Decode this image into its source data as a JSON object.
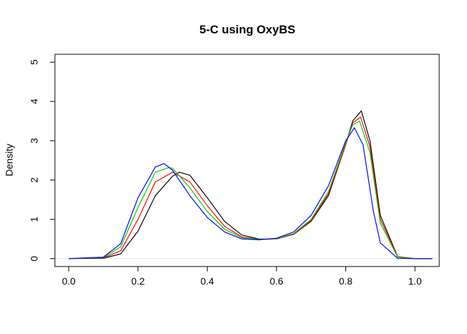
{
  "chart_data": {
    "type": "line",
    "title": "5-C using OxyBS",
    "xlabel": "",
    "ylabel": "Density",
    "xlim": [
      -0.04,
      1.07
    ],
    "ylim": [
      -0.2,
      5.2
    ],
    "x_ticks": [
      0.0,
      0.2,
      0.4,
      0.6,
      0.8,
      1.0
    ],
    "x_tick_labels": [
      "0.0",
      "0.2",
      "0.4",
      "0.6",
      "0.8",
      "1.0"
    ],
    "y_ticks": [
      0,
      1,
      2,
      3,
      4,
      5
    ],
    "y_tick_labels": [
      "0",
      "1",
      "2",
      "3",
      "4",
      "5"
    ],
    "grid": false,
    "legend": "none",
    "series": [
      {
        "color": "#000000",
        "x": [
          0.0,
          0.1,
          0.15,
          0.2,
          0.25,
          0.3,
          0.32,
          0.35,
          0.4,
          0.45,
          0.5,
          0.55,
          0.6,
          0.65,
          0.7,
          0.75,
          0.8,
          0.82,
          0.845,
          0.87,
          0.9,
          0.95,
          1.0,
          1.05
        ],
        "y": [
          0.0,
          0.01,
          0.12,
          0.7,
          1.6,
          2.1,
          2.2,
          2.12,
          1.55,
          0.95,
          0.6,
          0.5,
          0.5,
          0.62,
          0.95,
          1.6,
          2.9,
          3.5,
          3.76,
          3.0,
          1.1,
          0.05,
          0.0,
          0.0
        ]
      },
      {
        "color": "#ff0000",
        "x": [
          0.0,
          0.1,
          0.15,
          0.2,
          0.25,
          0.3,
          0.35,
          0.4,
          0.45,
          0.5,
          0.55,
          0.6,
          0.65,
          0.7,
          0.75,
          0.8,
          0.82,
          0.843,
          0.87,
          0.9,
          0.95,
          1.0,
          1.05
        ],
        "y": [
          0.0,
          0.02,
          0.2,
          1.0,
          1.95,
          2.2,
          1.95,
          1.35,
          0.82,
          0.55,
          0.49,
          0.5,
          0.63,
          0.97,
          1.65,
          2.9,
          3.45,
          3.6,
          2.85,
          1.0,
          0.05,
          0.0,
          0.0
        ]
      },
      {
        "color": "#00cc00",
        "x": [
          0.0,
          0.1,
          0.15,
          0.2,
          0.25,
          0.29,
          0.3,
          0.35,
          0.4,
          0.45,
          0.5,
          0.55,
          0.6,
          0.65,
          0.7,
          0.75,
          0.8,
          0.82,
          0.84,
          0.87,
          0.9,
          0.95,
          1.0,
          1.05
        ],
        "y": [
          0.0,
          0.03,
          0.3,
          1.3,
          2.2,
          2.32,
          2.3,
          1.8,
          1.2,
          0.75,
          0.53,
          0.49,
          0.51,
          0.64,
          1.0,
          1.7,
          2.95,
          3.4,
          3.5,
          2.7,
          0.9,
          0.04,
          0.0,
          0.0
        ]
      },
      {
        "color": "#0000ff",
        "x": [
          0.0,
          0.1,
          0.15,
          0.2,
          0.25,
          0.275,
          0.3,
          0.35,
          0.4,
          0.45,
          0.5,
          0.55,
          0.6,
          0.65,
          0.7,
          0.75,
          0.8,
          0.825,
          0.85,
          0.88,
          0.9,
          0.95,
          1.0,
          1.05
        ],
        "y": [
          0.0,
          0.04,
          0.38,
          1.55,
          2.33,
          2.42,
          2.25,
          1.6,
          1.05,
          0.68,
          0.5,
          0.48,
          0.52,
          0.68,
          1.1,
          1.85,
          3.0,
          3.33,
          2.9,
          1.2,
          0.4,
          0.01,
          0.0,
          0.0
        ]
      }
    ]
  }
}
